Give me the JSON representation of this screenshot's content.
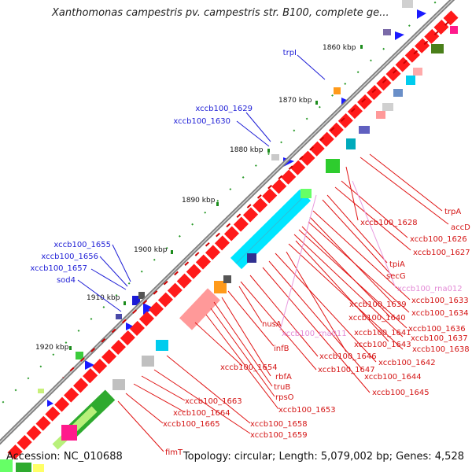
{
  "title": "Xanthomonas campestris pv. campestris str. B100, complete ge...",
  "footer": {
    "accession": "Accession: NC_010688",
    "summary": "Topology: circular; Length: 5,079,002 bp; Genes: 4,528"
  },
  "ticks": [
    "1860 kbp",
    "1870 kbp",
    "1880 kbp",
    "1890 kbp",
    "1900 kbp",
    "1910 kbp",
    "1920 kbp"
  ],
  "left_labels": [
    "trpI",
    "xccb100_1629",
    "xccb100_1630",
    "xccb100_1655",
    "xccb100_1656",
    "xccb100_1657",
    "sod4"
  ],
  "right_labels": [
    "trpA",
    "accD",
    "xccb100_1628",
    "xccb100_1626",
    "xccb100_1627",
    "tpiA",
    "secG",
    "xccb100_rna012",
    "xccb100_1633",
    "xccb100_1639",
    "xccb100_1634",
    "xccb100_1640",
    "xccb100_1636",
    "nusA",
    "xccb100_rna011",
    "xccb100_1641",
    "xccb100_1637",
    "xccb100_1643",
    "xccb100_1638",
    "infB",
    "xccb100_1646",
    "xccb100_1642",
    "xccb100_1654",
    "xccb100_1647",
    "xccb100_1644",
    "rbfA",
    "truB",
    "xccb100_1645",
    "rpsO",
    "xccb100_1653",
    "xccb100_1663",
    "xccb100_1664",
    "xccb100_1658",
    "xccb100_1665",
    "xccb100_1659",
    "fimT"
  ],
  "colors": {
    "cds": "#ff1a1a",
    "rrna": "#00e5ff",
    "backbone": "#8c8c8c",
    "label_blue": "#1f1fd6",
    "label_red": "#d41515",
    "label_pink": "#e38ad6",
    "tick_green": "#1c8c1c"
  }
}
